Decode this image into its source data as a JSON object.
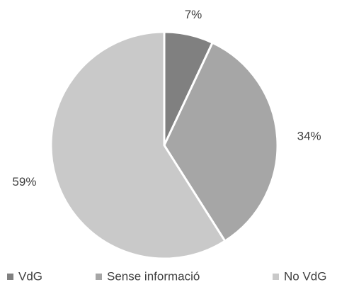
{
  "chart_data": {
    "type": "pie",
    "categories": [
      "VdG",
      "Sense informació",
      "No VdG"
    ],
    "values": [
      7,
      34,
      59
    ],
    "value_labels": [
      "7%",
      "34%",
      "59%"
    ],
    "colors": [
      "#808080",
      "#a6a6a6",
      "#c9c9c9"
    ],
    "legend": "bottom"
  }
}
